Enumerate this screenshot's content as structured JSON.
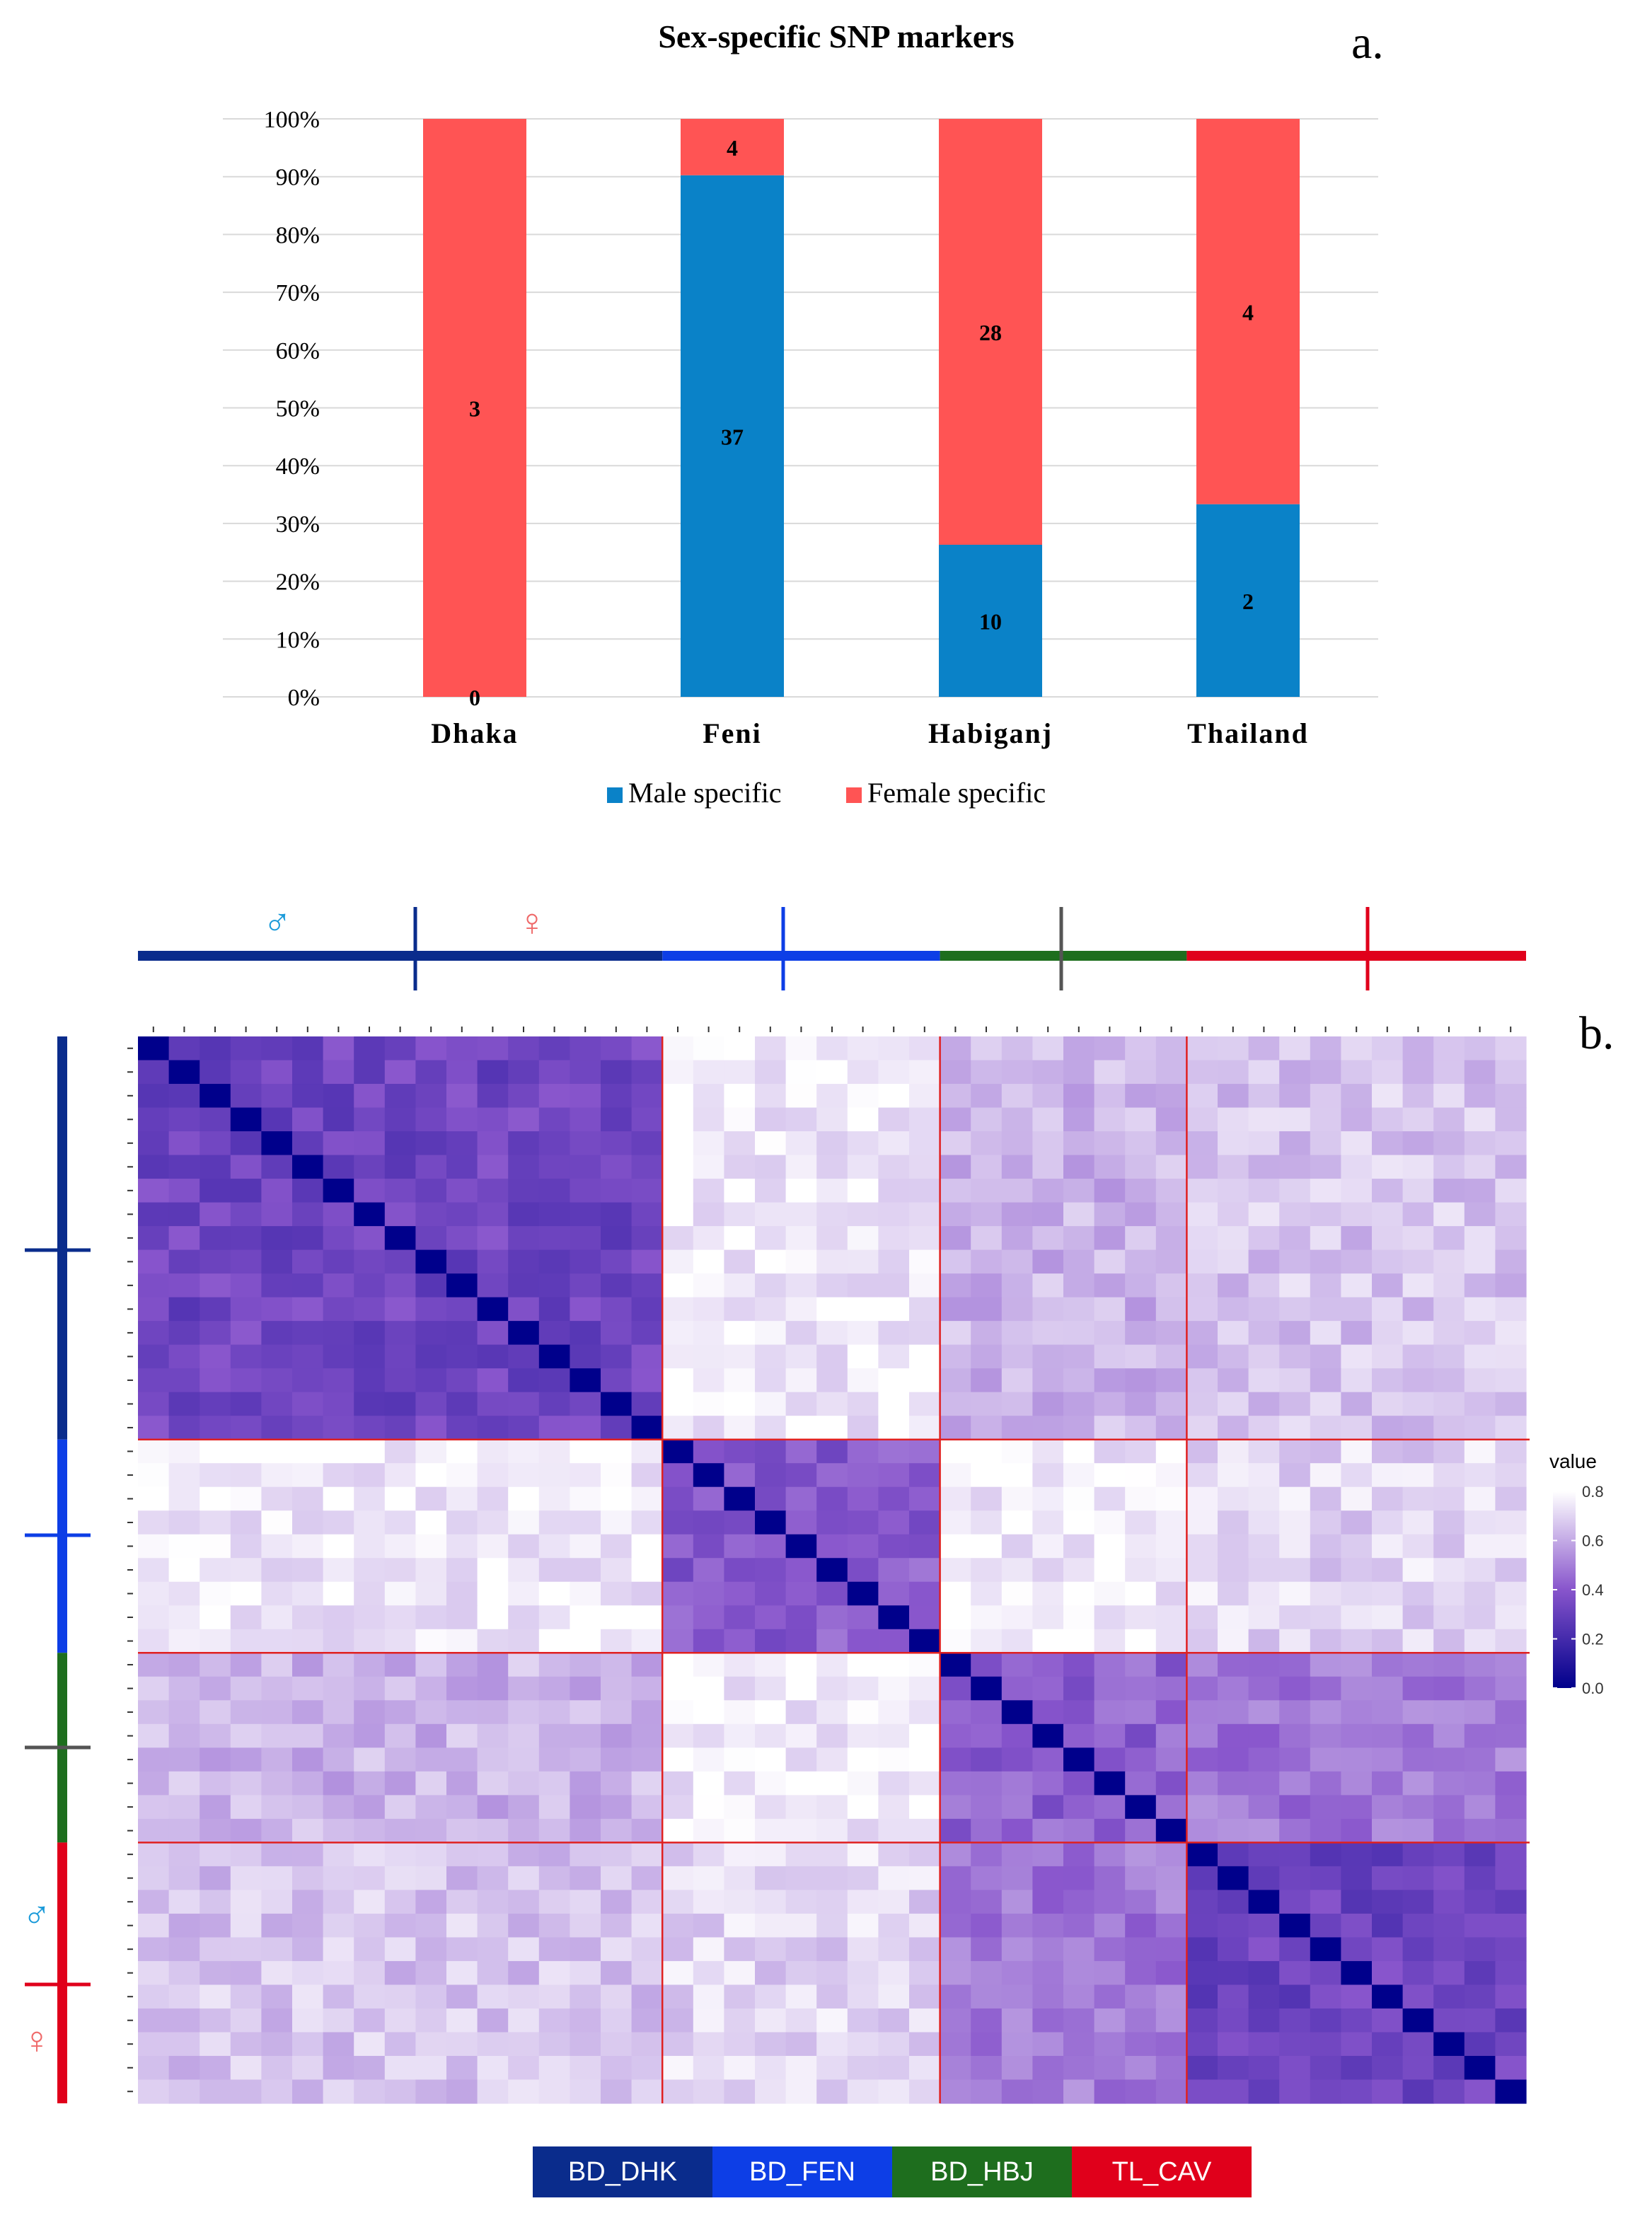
{
  "chart_data": [
    {
      "panel_label": "a.",
      "type": "bar",
      "stacked": true,
      "percent_stacked": true,
      "title": "Sex-specific SNP markers",
      "categories": [
        "Dhaka",
        "Feni",
        "Habiganj",
        "Thailand"
      ],
      "series": [
        {
          "name": "Male specific",
          "color": "#0a82c8",
          "values": [
            0,
            37,
            10,
            2
          ]
        },
        {
          "name": "Female specific",
          "color": "#ff5454",
          "values": [
            3,
            4,
            28,
            4
          ]
        }
      ],
      "yticks": [
        "0%",
        "10%",
        "20%",
        "30%",
        "40%",
        "50%",
        "60%",
        "70%",
        "80%",
        "90%",
        "100%"
      ],
      "ylim": [
        0,
        100
      ],
      "grid": true,
      "legend_position": "bottom"
    },
    {
      "panel_label": "b.",
      "type": "heatmap",
      "colorbar_title": "value",
      "colorbar_ticks": [
        "0.8",
        "0.6",
        "0.4",
        "0.2",
        "0.0"
      ],
      "colorbar_range": [
        0,
        0.8
      ],
      "color_low": "#00008b",
      "color_mid": "#8855cc",
      "color_high": "#ffffff",
      "groups": [
        {
          "name": "BD_DHK",
          "color": "#0a2c8c",
          "size": 17
        },
        {
          "name": "BD_FEN",
          "color": "#0d3ee6",
          "size": 9
        },
        {
          "name": "BD_HBJ",
          "color": "#1e6e1e",
          "size": 8
        },
        {
          "name": "TL_CAV",
          "color": "#e0001b",
          "size": 11
        }
      ],
      "sex_symbols": {
        "male": "♂",
        "female": "♀"
      },
      "separator_color": "#e02020"
    }
  ]
}
